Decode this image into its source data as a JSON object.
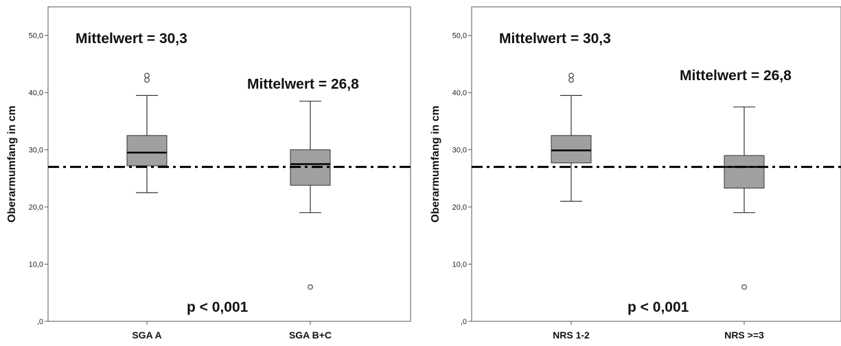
{
  "chart_data": [
    {
      "type": "box",
      "ylabel": "Oberarmumfang in cm",
      "ylim": [
        0,
        55
      ],
      "yticks": [
        {
          "value": 0,
          "label": ",0"
        },
        {
          "value": 10,
          "label": "10,0"
        },
        {
          "value": 20,
          "label": "20,0"
        },
        {
          "value": 30,
          "label": "30,0"
        },
        {
          "value": 40,
          "label": "40,0"
        },
        {
          "value": 50,
          "label": "50,0"
        }
      ],
      "categories": [
        "SGA A",
        "SGA B+C"
      ],
      "boxes": [
        {
          "whisker_low": 22.5,
          "q1": 27.2,
          "median": 29.5,
          "q3": 32.5,
          "whisker_high": 39.5,
          "outliers": [
            42.2,
            43.0
          ]
        },
        {
          "whisker_low": 19.0,
          "q1": 23.8,
          "median": 27.5,
          "q3": 30.0,
          "whisker_high": 38.5,
          "outliers": [
            6.0
          ]
        }
      ],
      "reference_line": {
        "value": 27.0,
        "style": "dash-dot"
      },
      "annotations": [
        {
          "text": "Mittelwert = 30,3",
          "x": 0,
          "y": 49.5
        },
        {
          "text": "Mittelwert = 26,8",
          "x": 1,
          "y": 41.5
        },
        {
          "text": "p < 0,001",
          "x": 0.55,
          "y": 2.5
        }
      ],
      "grid": false,
      "colors": {
        "box": "#a0a0a0",
        "line": "#000000"
      }
    },
    {
      "type": "box",
      "ylabel": "Oberarmumfang in cm",
      "ylim": [
        0,
        55
      ],
      "yticks": [
        {
          "value": 0,
          "label": ",0"
        },
        {
          "value": 10,
          "label": "10,0"
        },
        {
          "value": 20,
          "label": "20,0"
        },
        {
          "value": 30,
          "label": "30,0"
        },
        {
          "value": 40,
          "label": "40,0"
        },
        {
          "value": 50,
          "label": "50,0"
        }
      ],
      "categories": [
        "NRS 1-2",
        "NRS >=3"
      ],
      "boxes": [
        {
          "whisker_low": 21.0,
          "q1": 27.7,
          "median": 29.9,
          "q3": 32.5,
          "whisker_high": 39.5,
          "outliers": [
            42.2,
            43.0
          ]
        },
        {
          "whisker_low": 19.0,
          "q1": 23.3,
          "median": 27.0,
          "q3": 29.0,
          "whisker_high": 37.5,
          "outliers": [
            6.0
          ]
        }
      ],
      "reference_line": {
        "value": 27.0,
        "style": "dash-dot"
      },
      "annotations": [
        {
          "text": "Mittelwert = 30,3",
          "x": 0,
          "y": 49.5
        },
        {
          "text": "Mittelwert = 26,8",
          "x": 1,
          "y": 43.0
        },
        {
          "text": "p < 0,001",
          "x": 0.55,
          "y": 2.5
        }
      ],
      "grid": false,
      "colors": {
        "box": "#a0a0a0",
        "line": "#000000"
      }
    }
  ]
}
